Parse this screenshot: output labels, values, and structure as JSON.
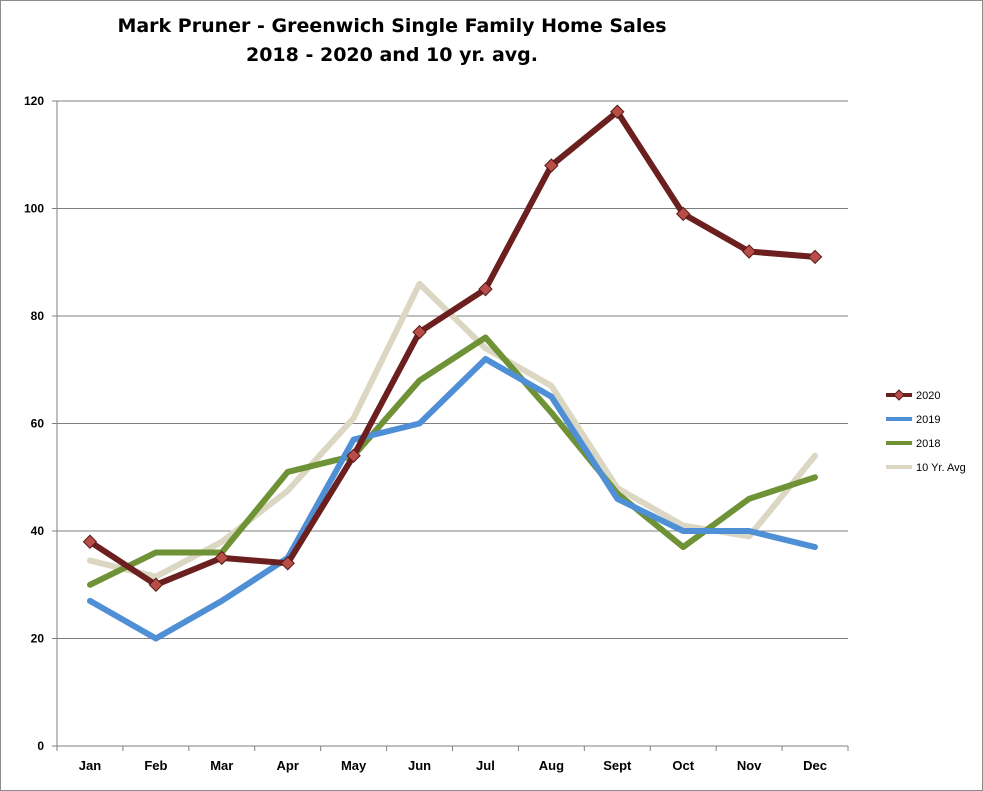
{
  "chart_data": {
    "type": "line",
    "title": "Mark Pruner - Greenwich Single Family Home Sales",
    "subtitle": "2018 - 2020 and 10 yr. avg.",
    "xlabel": "",
    "ylabel": "",
    "categories": [
      "Jan",
      "Feb",
      "Mar",
      "Apr",
      "May",
      "Jun",
      "Jul",
      "Aug",
      "Sept",
      "Oct",
      "Nov",
      "Dec"
    ],
    "ylim": [
      0,
      120
    ],
    "yticks": [
      "0",
      "20",
      "40",
      "60",
      "80",
      "100",
      "120"
    ],
    "grid": true,
    "legend_position": "right",
    "series": [
      {
        "name": "2020",
        "color": "#6b1f1f",
        "marker": "diamond",
        "marker_color": "#b94e48",
        "values": [
          38,
          30,
          35,
          34,
          54,
          77,
          85,
          108,
          118,
          99,
          92,
          91
        ]
      },
      {
        "name": "2019",
        "color": "#4f8fd6",
        "marker": "none",
        "values": [
          27,
          20,
          27,
          35,
          57,
          60,
          72,
          65,
          46,
          40,
          40,
          37
        ]
      },
      {
        "name": "2018",
        "color": "#6e9235",
        "marker": "none",
        "values": [
          30,
          36,
          36,
          51,
          54,
          68,
          76,
          62,
          47,
          37,
          46,
          50
        ]
      },
      {
        "name": "10 Yr. Avg",
        "color": "#dcd7c3",
        "marker": "none",
        "values": [
          34.5,
          31.5,
          38,
          47.5,
          61,
          86,
          74,
          67,
          48,
          41,
          39,
          54
        ]
      }
    ]
  }
}
